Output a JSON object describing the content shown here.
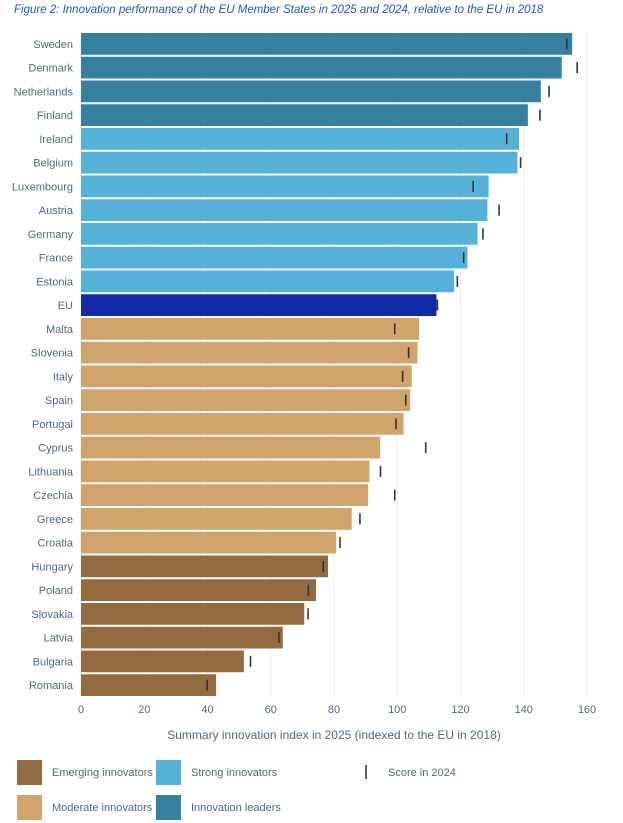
{
  "figure_title": "Figure 2: Innovation performance of the EU Member States in 2025 and 2024, relative to the EU in 2018",
  "chart_data": {
    "type": "bar",
    "orientation": "horizontal",
    "xlabel": "Summary innovation index in 2025 (indexed to the EU in 2018)",
    "xlim": [
      0,
      160
    ],
    "xticks": [
      0,
      20,
      40,
      60,
      80,
      100,
      120,
      140,
      160
    ],
    "grid": "vertical",
    "legend_position": "bottom",
    "categories": [
      "Sweden",
      "Denmark",
      "Netherlands",
      "Finland",
      "Ireland",
      "Belgium",
      "Luxembourg",
      "Austria",
      "Germany",
      "France",
      "Estonia",
      "EU",
      "Malta",
      "Slovenia",
      "Italy",
      "Spain",
      "Portugal",
      "Cyprus",
      "Lithuania",
      "Czechia",
      "Greece",
      "Croatia",
      "Hungary",
      "Poland",
      "Slovakia",
      "Latvia",
      "Bulgaria",
      "Romania"
    ],
    "values": [
      155.3,
      152.0,
      145.4,
      141.3,
      138.5,
      138.0,
      128.9,
      128.5,
      125.4,
      122.2,
      118.0,
      112.4,
      106.9,
      106.4,
      104.6,
      104.1,
      102.0,
      94.6,
      91.2,
      90.8,
      85.6,
      80.7,
      78.1,
      74.3,
      70.6,
      63.8,
      51.5,
      42.7
    ],
    "score_2024": [
      153.6,
      156.9,
      148.0,
      145.1,
      134.6,
      139.0,
      124.0,
      132.2,
      127.1,
      121.0,
      119.0,
      112.7,
      99.2,
      103.6,
      101.7,
      102.7,
      99.6,
      109.0,
      94.7,
      99.2,
      88.2,
      81.9,
      76.6,
      71.9,
      71.8,
      62.6,
      53.6,
      39.9
    ],
    "group": [
      "leader",
      "leader",
      "leader",
      "leader",
      "strong",
      "strong",
      "strong",
      "strong",
      "strong",
      "strong",
      "strong",
      "eu",
      "moderate",
      "moderate",
      "moderate",
      "moderate",
      "moderate",
      "moderate",
      "moderate",
      "moderate",
      "moderate",
      "moderate",
      "emerging",
      "emerging",
      "emerging",
      "emerging",
      "emerging",
      "emerging"
    ],
    "group_colors": {
      "leader": "#34809e",
      "strong": "#54b2d8",
      "eu": "#132aa8",
      "moderate": "#d0a46a",
      "emerging": "#946b40"
    },
    "marker_color": "#333333",
    "legend": [
      {
        "key": "emerging",
        "label": "Emerging innovators"
      },
      {
        "key": "strong",
        "label": "Strong innovators"
      },
      {
        "key": "marker",
        "label": "Score in 2024"
      },
      {
        "key": "moderate",
        "label": "Moderate innovators"
      },
      {
        "key": "leader",
        "label": "Innovation leaders"
      }
    ]
  }
}
